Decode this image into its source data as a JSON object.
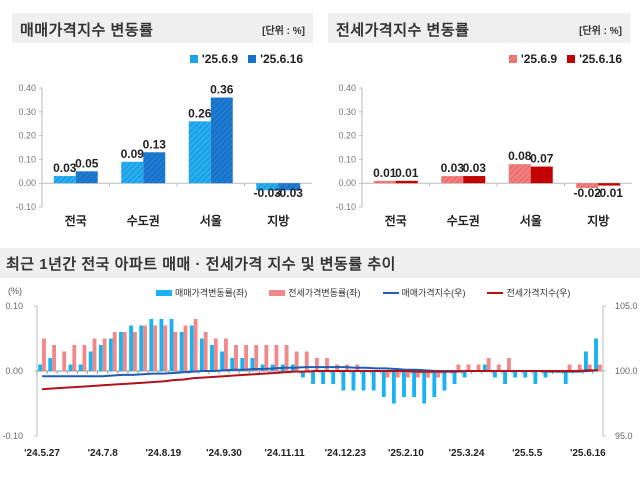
{
  "panels": {
    "sale": {
      "title": "매매가격지수 변동률",
      "unit": "[단위 : %]",
      "legend": [
        {
          "label": "'25.6.9",
          "color": "#1aa3e8"
        },
        {
          "label": "'25.6.16",
          "color": "#1673c9"
        }
      ]
    },
    "jeonse": {
      "title": "전세가격지수 변동률",
      "unit": "[단위 : %]",
      "legend": [
        {
          "label": "'25.6.9",
          "color": "#f08080"
        },
        {
          "label": "'25.6.16",
          "color": "#c00000"
        }
      ]
    },
    "trend": {
      "title": "최근 1년간 전국 아파트 매매 · 전세가격 지수 및 변동률 추이",
      "left_unit": "(%)",
      "legend": [
        {
          "label": "매매가격변동률(좌)",
          "color": "#1ab2f0",
          "kind": "box"
        },
        {
          "label": "전세가격변동률(좌)",
          "color": "#f08a8a",
          "kind": "box"
        },
        {
          "label": "매매가격지수(우)",
          "color": "#1e5fb4",
          "kind": "line"
        },
        {
          "label": "전세가격지수(우)",
          "color": "#b0121b",
          "kind": "line"
        }
      ]
    }
  },
  "chart_data": [
    {
      "type": "bar",
      "title": "매매가격지수 변동률",
      "categories": [
        "전국",
        "수도권",
        "서울",
        "지방"
      ],
      "series": [
        {
          "name": "'25.6.9",
          "values": [
            0.03,
            0.09,
            0.26,
            -0.03
          ],
          "labels": [
            "0.03",
            "0.09",
            "0.26",
            "-0.03"
          ]
        },
        {
          "name": "'25.6.16",
          "values": [
            0.05,
            0.13,
            0.36,
            -0.03
          ],
          "labels": [
            "0.05",
            "0.13",
            "0.36",
            "-0.03"
          ]
        }
      ],
      "ylim": [
        -0.1,
        0.4
      ],
      "yticks": [
        "0.40",
        "0.30",
        "0.20",
        "0.10",
        "0.00",
        "-0.10"
      ],
      "ytick_values": [
        0.4,
        0.3,
        0.2,
        0.1,
        0.0,
        -0.1
      ],
      "legend_position": "top-right",
      "grid": false
    },
    {
      "type": "bar",
      "title": "전세가격지수 변동률",
      "categories": [
        "전국",
        "수도권",
        "서울",
        "지방"
      ],
      "series": [
        {
          "name": "'25.6.9",
          "values": [
            0.01,
            0.03,
            0.08,
            -0.02
          ],
          "labels": [
            "0.01",
            "0.03",
            "0.08",
            "-0.02"
          ]
        },
        {
          "name": "'25.6.16",
          "values": [
            0.01,
            0.03,
            0.07,
            -0.01
          ],
          "labels": [
            "0.01",
            "0.03",
            "0.07",
            "-0.01"
          ]
        }
      ],
      "ylim": [
        -0.1,
        0.4
      ],
      "yticks": [
        "0.40",
        "0.30",
        "0.20",
        "0.10",
        "0.00",
        "-0.10"
      ],
      "ytick_values": [
        0.4,
        0.3,
        0.2,
        0.1,
        0.0,
        -0.1
      ],
      "legend_position": "top-right",
      "grid": false
    },
    {
      "type": "bar",
      "title": "최근 1년간 전국 아파트 매매 · 전세가격 지수 및 변동률 추이",
      "ylabel": "(%)",
      "ylim": [
        -0.1,
        0.1
      ],
      "yticks": [
        "0.10",
        "0.00",
        "-0.10"
      ],
      "ytick_values": [
        0.1,
        0.0,
        -0.1
      ],
      "y2lim": [
        95.0,
        105.0
      ],
      "y2ticks": [
        "105.0",
        "100.0",
        "95.0"
      ],
      "y2tick_values": [
        105.0,
        100.0,
        95.0
      ],
      "xtick_labels": [
        "'24.5.27",
        "'24.7.8",
        "'24.8.19",
        "'24.9.30",
        "'24.11.11",
        "'24.12.23",
        "'25.2.10",
        "'25.3.24",
        "'25.5.5",
        "'25.6.16"
      ],
      "xtick_every": 6,
      "series": [
        {
          "name": "매매가격변동률(좌)",
          "kind": "bar",
          "values": [
            0.01,
            0.02,
            0.0,
            0.01,
            0.01,
            0.03,
            0.04,
            0.05,
            0.06,
            0.07,
            0.07,
            0.08,
            0.08,
            0.08,
            0.06,
            0.07,
            0.05,
            0.04,
            0.03,
            0.02,
            0.02,
            0.02,
            0.01,
            0.01,
            0.01,
            0.01,
            -0.01,
            -0.02,
            -0.02,
            -0.02,
            -0.03,
            -0.03,
            -0.03,
            -0.03,
            -0.04,
            -0.05,
            -0.04,
            -0.04,
            -0.05,
            -0.04,
            -0.03,
            -0.02,
            -0.01,
            0.0,
            0.01,
            -0.01,
            -0.02,
            -0.01,
            -0.01,
            -0.02,
            -0.01,
            0.0,
            -0.02,
            0.0,
            0.03,
            0.05
          ]
        },
        {
          "name": "전세가격변동률(좌)",
          "kind": "bar",
          "values": [
            0.05,
            0.04,
            0.03,
            0.04,
            0.04,
            0.05,
            0.05,
            0.06,
            0.06,
            0.06,
            0.07,
            0.07,
            0.07,
            0.06,
            0.07,
            0.08,
            0.06,
            0.05,
            0.05,
            0.04,
            0.04,
            0.04,
            0.04,
            0.04,
            0.04,
            0.03,
            0.03,
            0.02,
            0.02,
            0.01,
            0.01,
            0.01,
            0.0,
            0.0,
            -0.01,
            -0.01,
            -0.01,
            -0.01,
            -0.01,
            -0.01,
            0.0,
            0.01,
            0.01,
            0.01,
            0.02,
            0.01,
            0.02,
            0.0,
            0.0,
            0.0,
            0.0,
            0.0,
            0.01,
            0.01,
            0.01,
            0.01
          ]
        },
        {
          "name": "매매가격지수(우)",
          "kind": "line",
          "axis": "right",
          "values": [
            99.6,
            99.6,
            99.6,
            99.6,
            99.6,
            99.6,
            99.6,
            99.65,
            99.7,
            99.7,
            99.75,
            99.8,
            99.8,
            99.85,
            99.9,
            99.95,
            100.0,
            100.0,
            100.05,
            100.1,
            100.1,
            100.15,
            100.15,
            100.2,
            100.25,
            100.25,
            100.3,
            100.3,
            100.3,
            100.3,
            100.3,
            100.25,
            100.25,
            100.2,
            100.2,
            100.15,
            100.1,
            100.1,
            100.05,
            100.0,
            100.0,
            100.0,
            100.0,
            100.0,
            100.0,
            100.0,
            100.0,
            100.0,
            100.0,
            100.0,
            99.95,
            99.95,
            99.95,
            99.95,
            100.0,
            100.05
          ]
        },
        {
          "name": "전세가격지수(우)",
          "kind": "line",
          "axis": "right",
          "values": [
            98.6,
            98.65,
            98.7,
            98.75,
            98.8,
            98.85,
            98.9,
            98.95,
            99.0,
            99.05,
            99.1,
            99.15,
            99.2,
            99.3,
            99.35,
            99.45,
            99.5,
            99.55,
            99.6,
            99.65,
            99.7,
            99.75,
            99.8,
            99.85,
            99.9,
            99.95,
            99.95,
            100.0,
            100.0,
            100.0,
            100.0,
            100.0,
            100.0,
            100.0,
            100.0,
            100.0,
            100.0,
            99.95,
            99.95,
            99.95,
            99.95,
            99.95,
            100.0,
            100.0,
            100.0,
            100.0,
            100.0,
            100.0,
            100.0,
            100.0,
            100.0,
            100.0,
            100.0,
            100.0,
            100.05,
            100.05
          ]
        }
      ],
      "legend_position": "top-center",
      "grid": false
    }
  ]
}
